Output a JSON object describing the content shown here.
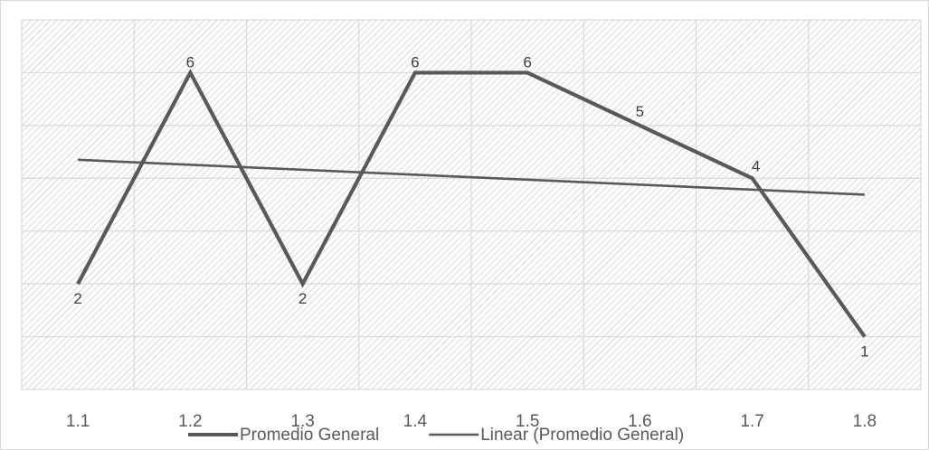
{
  "chart_data": {
    "type": "line",
    "categories": [
      "1.1",
      "1.2",
      "1.3",
      "1.4",
      "1.5",
      "1.6",
      "1.7",
      "1.8"
    ],
    "series": [
      {
        "name": "Promedio General",
        "x": [
          "1.1",
          "1.2",
          "1.3",
          "1.4",
          "1.5",
          "1.6",
          "1.7",
          "1.8"
        ],
        "values": [
          2,
          6,
          2,
          6,
          6,
          5,
          4,
          1
        ],
        "data_labels": [
          "2",
          "6",
          "2",
          "6",
          "6",
          "5",
          "4",
          "1"
        ],
        "color": "#595959"
      },
      {
        "name": "Linear (Promedio General)",
        "x": [
          "1.1",
          "1.8"
        ],
        "values": [
          4.35,
          3.69
        ],
        "color": "#595959"
      }
    ],
    "ylim": [
      0,
      7
    ],
    "y_ticks_shown": false,
    "grid": true,
    "plot_background": "diagonal-hatch",
    "legend_position": "bottom",
    "title": "",
    "xlabel": "",
    "ylabel": ""
  }
}
